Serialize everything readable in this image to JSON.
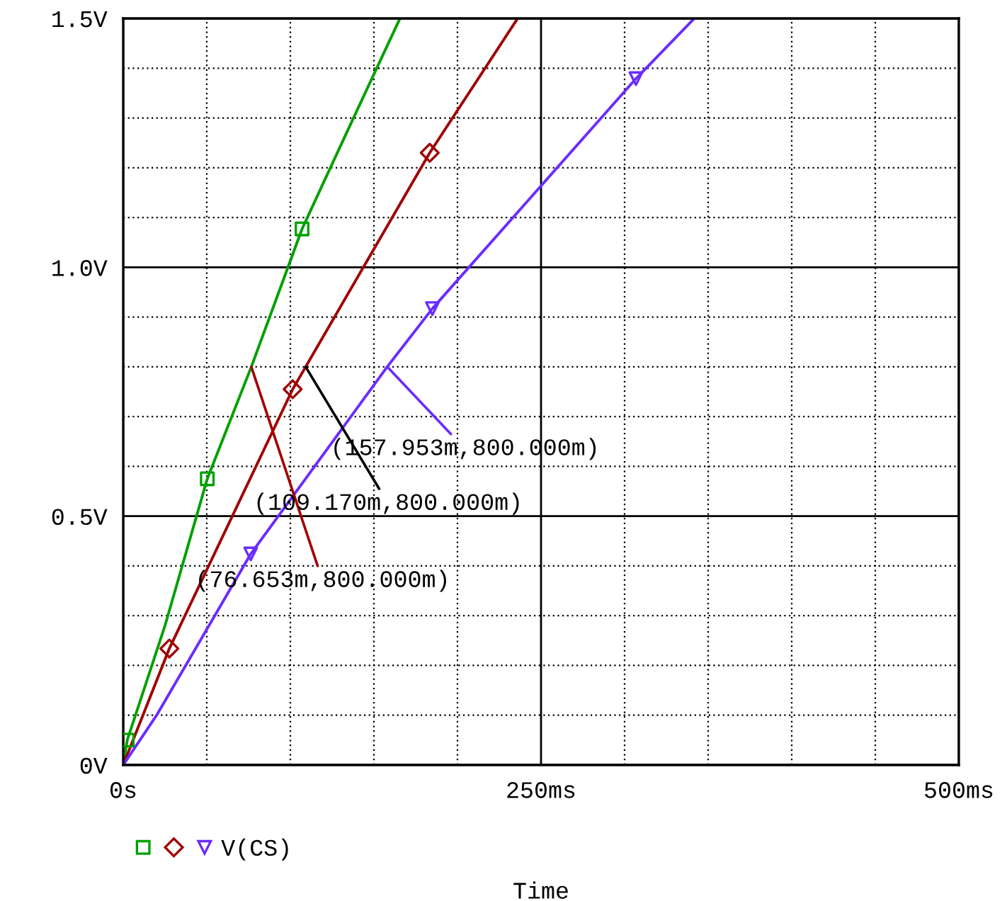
{
  "chart_data": {
    "type": "line",
    "xlabel": "Time",
    "xlim": [
      0,
      500
    ],
    "xticks": [
      {
        "value": 0,
        "label": "0s"
      },
      {
        "value": 250,
        "label": "250ms"
      },
      {
        "value": 500,
        "label": "500ms"
      }
    ],
    "ylim": [
      0,
      1.5
    ],
    "yticks": [
      {
        "value": 0,
        "label": "0V"
      },
      {
        "value": 0.5,
        "label": "0.5V"
      },
      {
        "value": 1.0,
        "label": "1.0V"
      },
      {
        "value": 1.5,
        "label": "1.5V"
      }
    ],
    "grid": true,
    "legend": "bottom left",
    "series": [
      {
        "color": "#00a000",
        "marker": "none",
        "x": [
          0,
          2.4,
          25,
          50.3,
          76.653,
          107,
          135,
          165.6
        ],
        "values": [
          0,
          0.05,
          0.28,
          0.575,
          0.8,
          1.077,
          1.28,
          1.5
        ]
      },
      {
        "color": "#a00000",
        "marker": "none",
        "x": [
          0,
          27.6,
          101.4,
          109.17,
          183.4,
          236
        ],
        "values": [
          0,
          0.234,
          0.755,
          0.8,
          1.23,
          1.5
        ]
      },
      {
        "color": "#6a2cff",
        "marker": "none",
        "x": [
          0,
          20,
          76.3,
          157.953,
          185,
          306.8,
          341.7
        ],
        "values": [
          0,
          0.1,
          0.424,
          0.8,
          0.917,
          1.379,
          1.5
        ]
      },
      {
        "type": "scatter",
        "color": "#00a000",
        "marker": "square",
        "x": [
          2.4,
          50.3,
          107
        ],
        "values": [
          0.05,
          0.575,
          1.077
        ]
      },
      {
        "type": "scatter",
        "color": "#a00000",
        "marker": "diamond",
        "x": [
          27.6,
          101.4,
          183.4
        ],
        "values": [
          0.234,
          0.755,
          1.23
        ]
      },
      {
        "type": "scatter",
        "name": "V(CS)",
        "color": "#6a2cff",
        "marker": "triangle",
        "x": [
          76.3,
          185,
          306.8
        ],
        "values": [
          0.424,
          0.917,
          1.379
        ]
      }
    ],
    "annotations": [
      {
        "text": "(76.653m,800.000m)",
        "x": 76.653,
        "y": 0.8
      },
      {
        "text": "(109.170m,800.000m)",
        "x": 109.17,
        "y": 0.8
      },
      {
        "text": "(157.953m,800.000m)",
        "x": 157.953,
        "y": 0.8
      }
    ]
  }
}
